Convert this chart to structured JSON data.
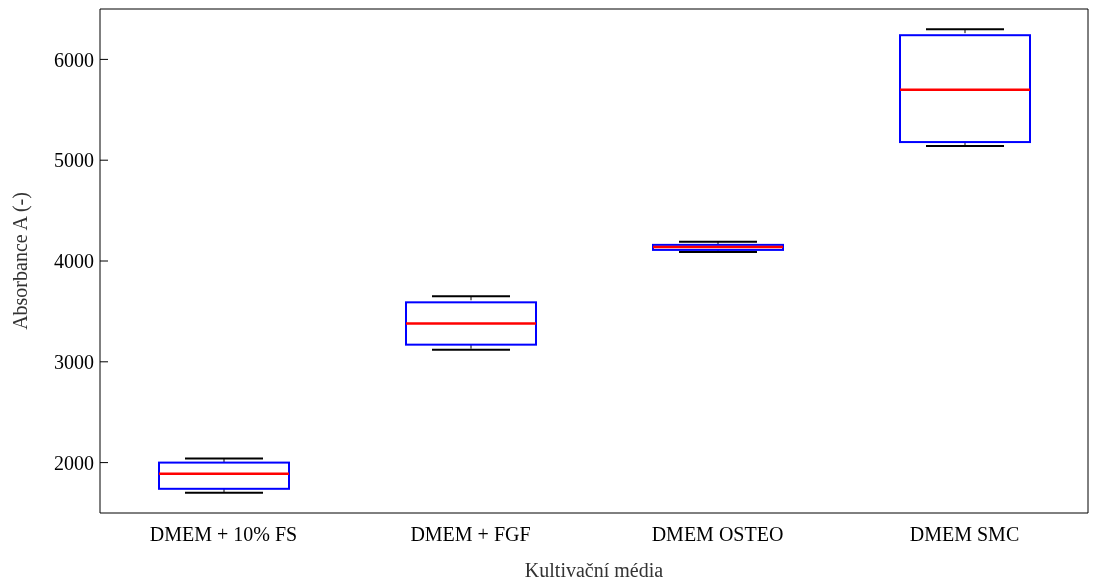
{
  "chart_data": {
    "type": "box",
    "xlabel": "Kultivační média",
    "ylabel": "Absorbance A (-)",
    "categories": [
      "DMEM + 10% FS",
      "DMEM + FGF",
      "DMEM OSTEO",
      "DMEM SMC"
    ],
    "boxes": [
      {
        "low": 1700,
        "q1": 1740,
        "median": 1890,
        "q3": 2000,
        "high": 2040
      },
      {
        "low": 3120,
        "q1": 3170,
        "median": 3380,
        "q3": 3590,
        "high": 3650
      },
      {
        "low": 4090,
        "q1": 4110,
        "median": 4140,
        "q3": 4160,
        "high": 4190
      },
      {
        "low": 5140,
        "q1": 5180,
        "median": 5700,
        "q3": 6240,
        "high": 6300
      }
    ],
    "color": "#0000ff",
    "ylim": [
      1500,
      6500
    ],
    "yticks": [
      2000,
      3000,
      4000,
      5000,
      6000
    ],
    "grid": false
  }
}
